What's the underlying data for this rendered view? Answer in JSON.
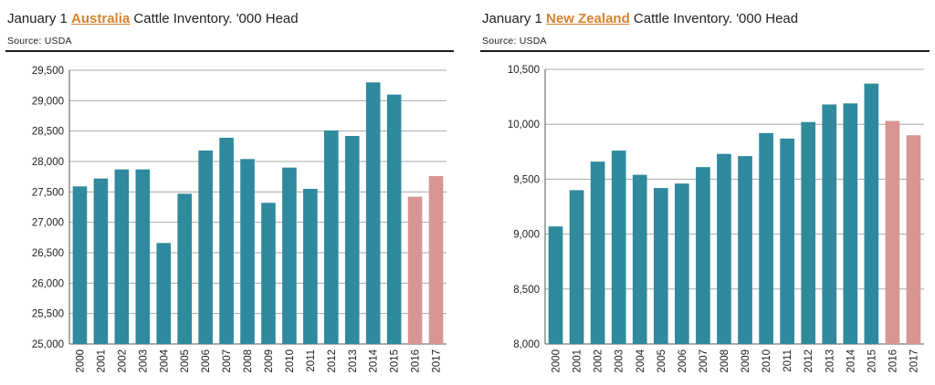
{
  "charts": [
    {
      "title_pre": "January 1 ",
      "country": "Australia",
      "title_post": " Cattle Inventory. '000 Head",
      "source": "Source: USDA"
    },
    {
      "title_pre": "January 1 ",
      "country": "New Zealand",
      "title_post": " Cattle Inventory. '000 Head",
      "source": "Source: USDA"
    }
  ],
  "colors": {
    "actual": "#2e8a9c",
    "forecast": "#d89593",
    "country": "#d9822b"
  },
  "chart_data": [
    {
      "type": "bar",
      "title": "January 1 Australia Cattle Inventory. '000 Head",
      "categories": [
        "2000",
        "2001",
        "2002",
        "2003",
        "2004",
        "2005",
        "2006",
        "2007",
        "2008",
        "2009",
        "2010",
        "2011",
        "2012",
        "2013",
        "2014",
        "2015",
        "2016",
        "2017"
      ],
      "values": [
        27590,
        27720,
        27870,
        27870,
        26660,
        27470,
        28180,
        28390,
        28040,
        27320,
        27900,
        27550,
        28510,
        28420,
        29300,
        29100,
        27420,
        27760
      ],
      "highlight": [
        "2016",
        "2017"
      ],
      "ylim": [
        25000,
        29500
      ],
      "yticks": [
        25000,
        25500,
        26000,
        26500,
        27000,
        27500,
        28000,
        28500,
        29000,
        29500
      ],
      "ytick_labels": [
        "25,000",
        "25,500",
        "26,000",
        "26,500",
        "27,000",
        "27,500",
        "28,000",
        "28,500",
        "29,000",
        "29,500"
      ],
      "grid": true
    },
    {
      "type": "bar",
      "title": "January 1 New Zealand Cattle Inventory. '000 Head",
      "categories": [
        "2000",
        "2001",
        "2002",
        "2003",
        "2004",
        "2005",
        "2006",
        "2007",
        "2008",
        "2009",
        "2010",
        "2011",
        "2012",
        "2013",
        "2014",
        "2015",
        "2016",
        "2017"
      ],
      "values": [
        9070,
        9400,
        9660,
        9760,
        9540,
        9420,
        9460,
        9610,
        9730,
        9710,
        9920,
        9870,
        10020,
        10180,
        10190,
        10370,
        10030,
        9900
      ],
      "highlight": [
        "2016",
        "2017"
      ],
      "ylim": [
        8000,
        10500
      ],
      "yticks": [
        8000,
        8500,
        9000,
        9500,
        10000,
        10500
      ],
      "ytick_labels": [
        "8,000",
        "8,500",
        "9,000",
        "9,500",
        "10,000",
        "10,500"
      ],
      "grid": true
    }
  ]
}
